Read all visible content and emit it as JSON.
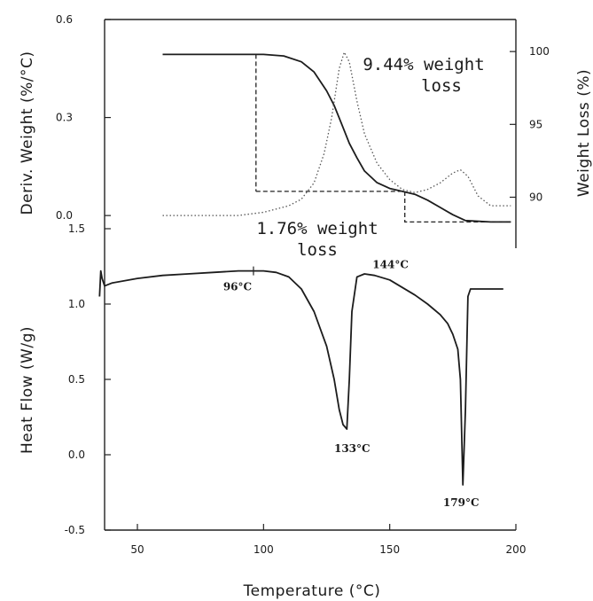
{
  "chart_data": [
    {
      "type": "line",
      "panel": "top",
      "xlabel": "Temperature (°C)",
      "ylabel_left": "Deriv. Weight (%/°C)",
      "ylabel_right": "Weight Loss (%)",
      "xlim": [
        37,
        200
      ],
      "ylim_left": [
        -0.1,
        0.6
      ],
      "ylim_right": [
        86.5,
        102.2
      ],
      "left_ticks": [
        "0.6",
        "0.3",
        "0.0"
      ],
      "left_tick_values": [
        0.6,
        0.3,
        0.0
      ],
      "right_ticks": [
        "100",
        "95",
        "90"
      ],
      "right_tick_values": [
        100,
        95,
        90
      ],
      "series": [
        {
          "axis": "right",
          "style": "solid",
          "x": [
            60,
            90,
            100,
            108,
            115,
            120,
            125,
            128,
            131,
            134,
            137,
            140,
            145,
            150,
            155,
            160,
            165,
            170,
            175,
            180,
            190,
            198
          ],
          "y": [
            99.8,
            99.8,
            99.8,
            99.7,
            99.3,
            98.6,
            97.3,
            96.3,
            95.0,
            93.7,
            92.7,
            91.8,
            91.0,
            90.6,
            90.4,
            90.2,
            89.8,
            89.3,
            88.8,
            88.4,
            88.3,
            88.3
          ]
        },
        {
          "axis": "left",
          "style": "dotted",
          "x": [
            60,
            90,
            100,
            110,
            115,
            120,
            124,
            127,
            130,
            132,
            134,
            137,
            140,
            145,
            150,
            155,
            160,
            165,
            170,
            175,
            178,
            181,
            185,
            190,
            198
          ],
          "y": [
            0.0,
            0.0,
            0.01,
            0.03,
            0.05,
            0.1,
            0.19,
            0.3,
            0.45,
            0.5,
            0.47,
            0.35,
            0.25,
            0.16,
            0.11,
            0.08,
            0.07,
            0.08,
            0.1,
            0.13,
            0.14,
            0.12,
            0.06,
            0.03,
            0.03
          ]
        }
      ],
      "guides": [
        {
          "style": "dashed",
          "x": [
            97,
            97
          ],
          "y_right": [
            99.8,
            90.4
          ]
        },
        {
          "style": "dashed",
          "x": [
            97,
            156,
            156,
            198
          ],
          "y_right": [
            90.4,
            90.4,
            88.3,
            88.3
          ]
        }
      ],
      "annotations": [
        "9.44% weight",
        "loss",
        "1.76% weight",
        "loss"
      ]
    },
    {
      "type": "line",
      "panel": "bottom",
      "xlabel": "Temperature (°C)",
      "ylabel": "Heat Flow (W/g)",
      "xlim": [
        37,
        200
      ],
      "ylim": [
        -0.5,
        1.5
      ],
      "yticks": [
        "1.5",
        "1.0",
        "0.5",
        "0.0",
        "-0.5"
      ],
      "ytick_values": [
        1.5,
        1.0,
        0.5,
        0.0,
        -0.5
      ],
      "xticks": [
        "50",
        "100",
        "150",
        "200"
      ],
      "xtick_values": [
        50,
        100,
        150,
        200
      ],
      "series": [
        {
          "style": "solid",
          "x": [
            35,
            35.5,
            36,
            37,
            40,
            50,
            60,
            70,
            80,
            90,
            96,
            100,
            105,
            110,
            115,
            120,
            125,
            128,
            130,
            131.5,
            133,
            134,
            135,
            137,
            140,
            144,
            150,
            155,
            160,
            165,
            170,
            173,
            175,
            177,
            178,
            179,
            180,
            181,
            182,
            185,
            190,
            195
          ],
          "y": [
            1.05,
            1.22,
            1.17,
            1.12,
            1.14,
            1.17,
            1.19,
            1.2,
            1.21,
            1.22,
            1.22,
            1.22,
            1.21,
            1.18,
            1.1,
            0.95,
            0.72,
            0.5,
            0.3,
            0.2,
            0.17,
            0.5,
            0.95,
            1.18,
            1.2,
            1.19,
            1.16,
            1.11,
            1.06,
            1.0,
            0.93,
            0.87,
            0.8,
            0.7,
            0.5,
            -0.2,
            0.3,
            1.05,
            1.1,
            1.1,
            1.1,
            1.1
          ]
        }
      ],
      "peak_labels": [
        {
          "text": "96°C",
          "x": 96,
          "y": 1.22
        },
        {
          "text": "144°C",
          "x": 144,
          "y": 1.19
        },
        {
          "text": "133°C",
          "x": 133,
          "y": 0.17
        },
        {
          "text": "179°C",
          "x": 179,
          "y": -0.2
        }
      ]
    }
  ]
}
